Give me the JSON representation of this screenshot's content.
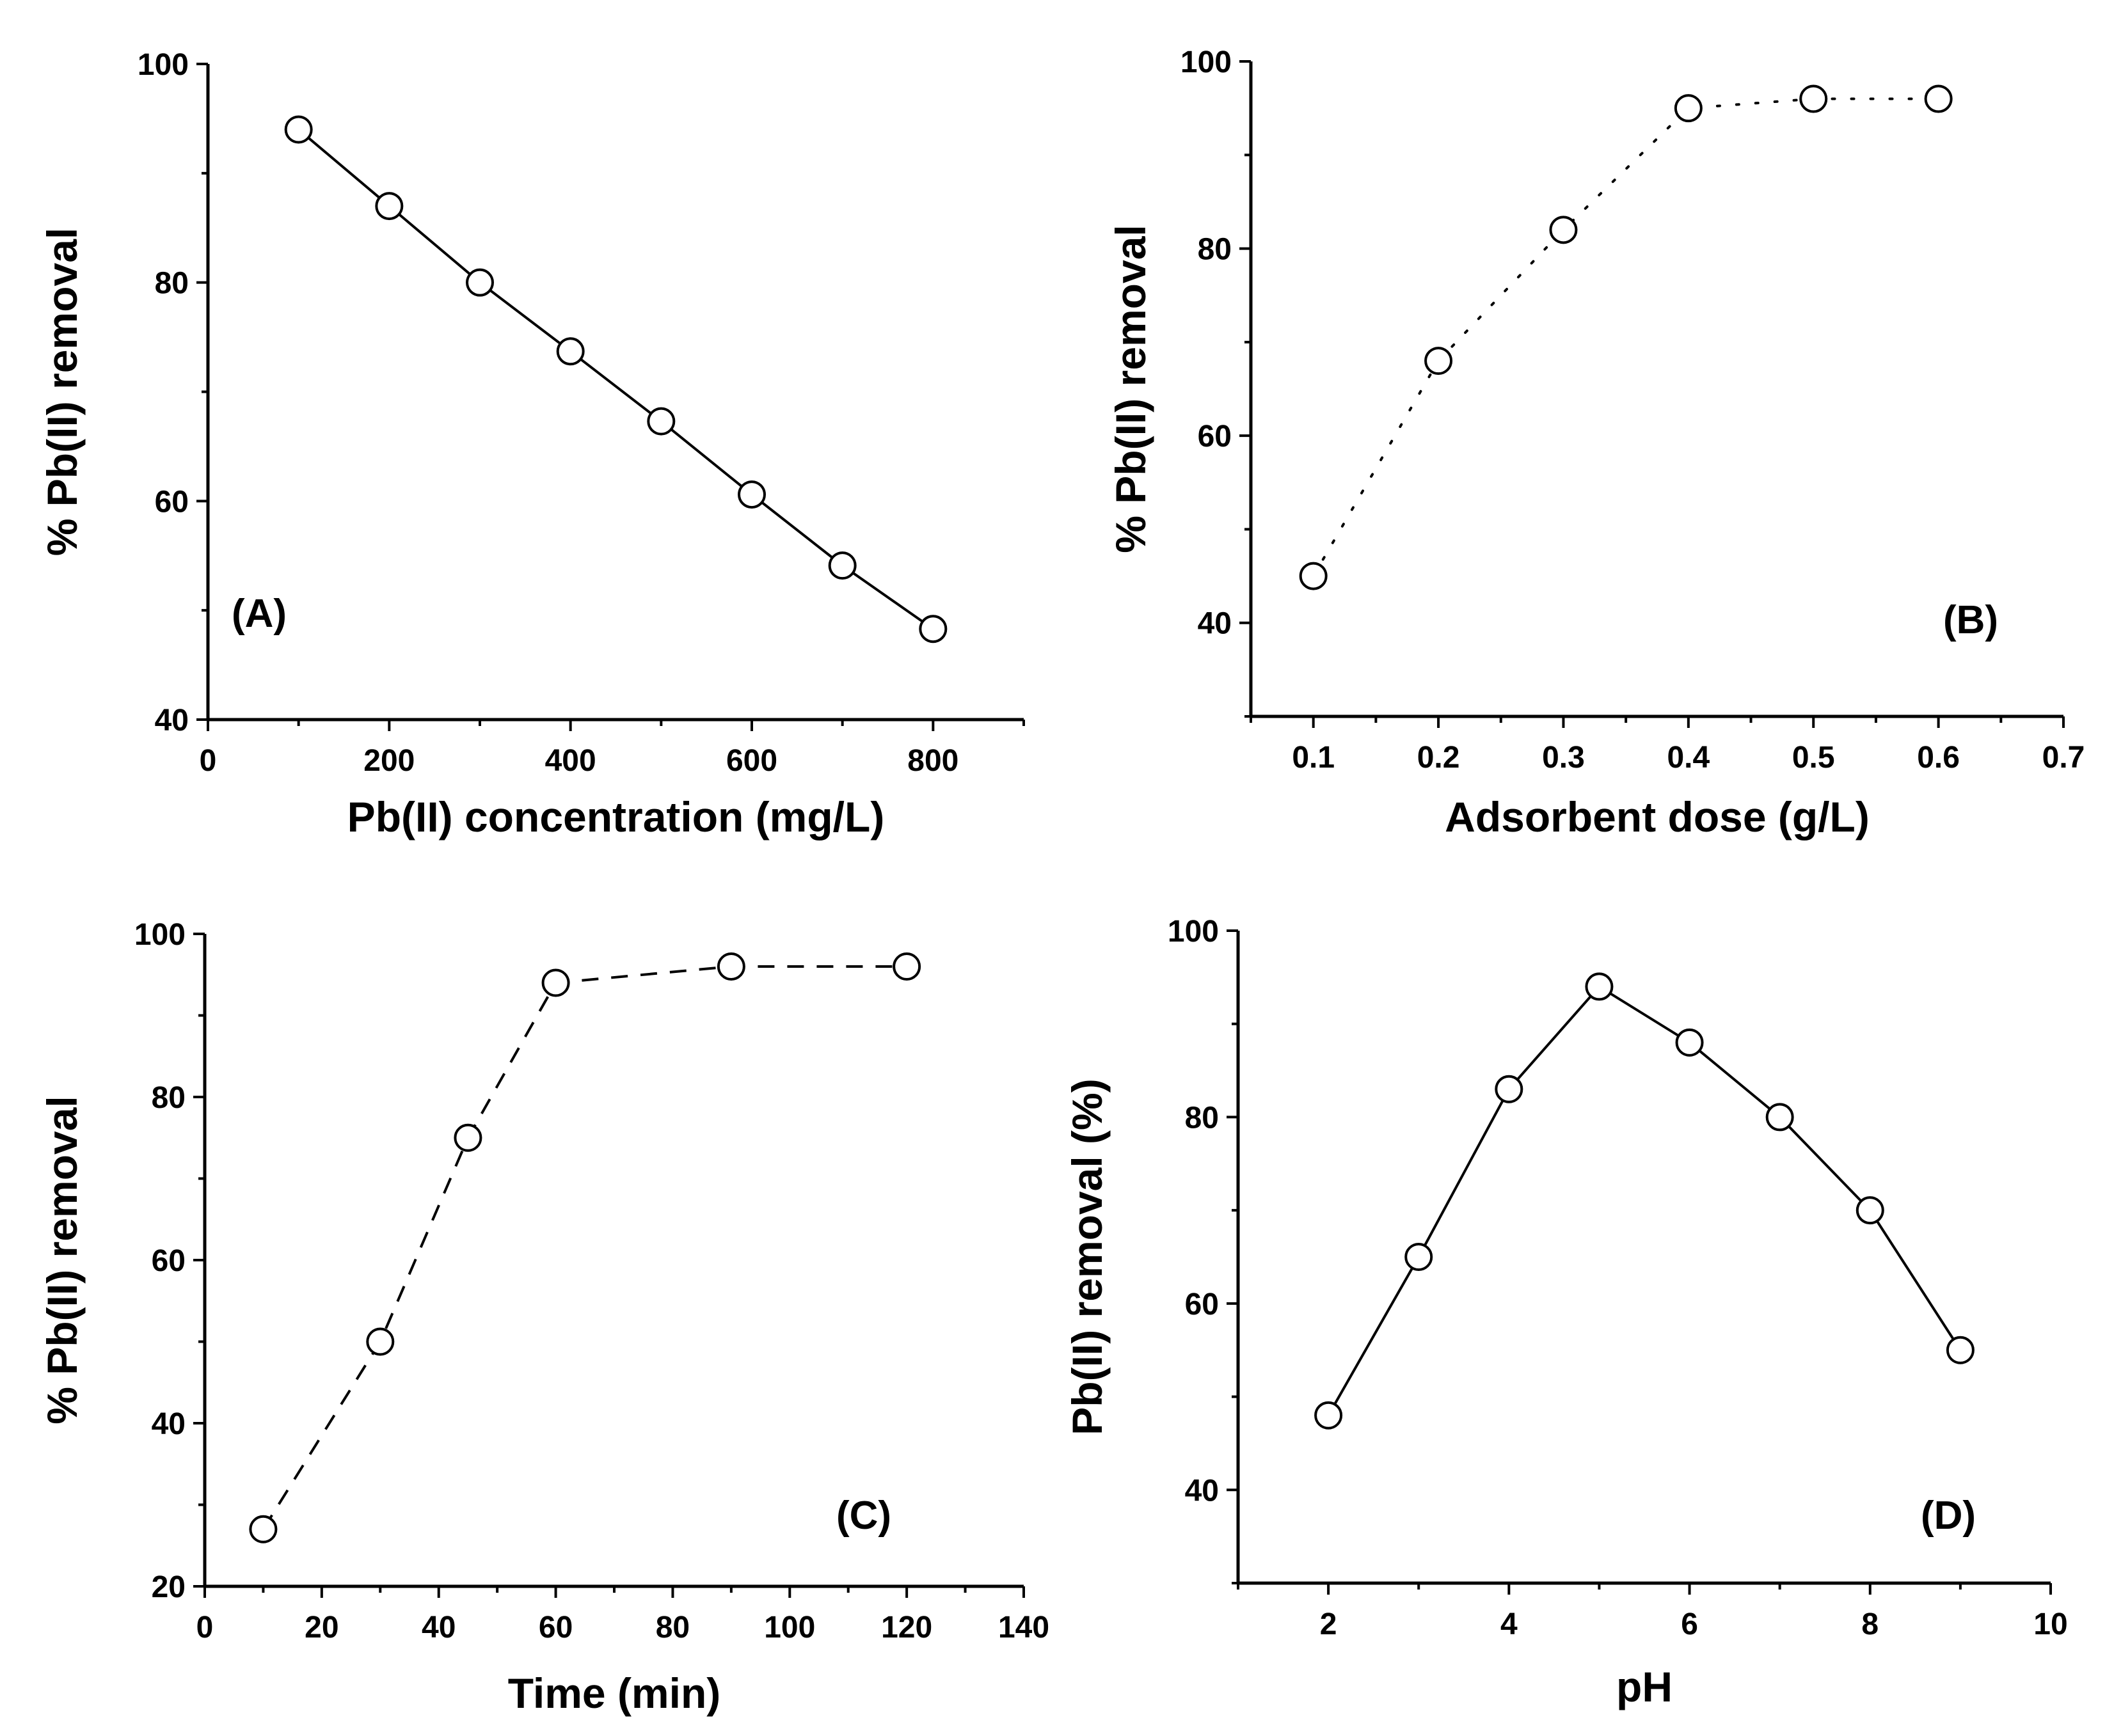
{
  "chart_data": [
    {
      "type": "line",
      "panel": "(A)",
      "xlabel": "Pb(II) concentration (mg/L)",
      "ylabel": "% Pb(II) removal",
      "xlim": [
        0,
        900
      ],
      "ylim": [
        40,
        100
      ],
      "xticks": [
        0,
        200,
        400,
        600,
        800
      ],
      "yticks": [
        40,
        60,
        80,
        100
      ],
      "line_style": "solid",
      "grid": false,
      "series": [
        {
          "name": "Pb(II) removal",
          "x": [
            100,
            200,
            300,
            400,
            500,
            600,
            700,
            800
          ],
          "values": [
            94,
            87,
            80,
            73.7,
            67.3,
            60.6,
            54.1,
            48.3
          ]
        }
      ]
    },
    {
      "type": "line",
      "panel": "(B)",
      "xlabel": "Adsorbent dose (g/L)",
      "ylabel": "% Pb(II) removal",
      "xlim": [
        0.05,
        0.7
      ],
      "ylim": [
        30,
        100
      ],
      "xticks": [
        0.1,
        0.2,
        0.3,
        0.4,
        0.5,
        0.6,
        0.7
      ],
      "yticks": [
        40,
        60,
        80,
        100
      ],
      "line_style": "dotted",
      "grid": false,
      "series": [
        {
          "name": "Pb(II) removal",
          "x": [
            0.1,
            0.2,
            0.3,
            0.4,
            0.5,
            0.6
          ],
          "values": [
            45,
            68,
            82,
            95,
            96,
            96
          ]
        }
      ]
    },
    {
      "type": "line",
      "panel": "(C)",
      "xlabel": "Time (min)",
      "ylabel": "% Pb(II) removal",
      "xlim": [
        0,
        140
      ],
      "ylim": [
        20,
        100
      ],
      "xticks": [
        0,
        20,
        40,
        60,
        80,
        100,
        120,
        140
      ],
      "yticks": [
        20,
        40,
        60,
        80,
        100
      ],
      "line_style": "dashed",
      "grid": false,
      "series": [
        {
          "name": "Pb(II) removal",
          "x": [
            10,
            30,
            45,
            60,
            90,
            120
          ],
          "values": [
            27,
            50,
            75,
            94,
            96,
            96
          ]
        }
      ]
    },
    {
      "type": "line",
      "panel": "(D)",
      "xlabel": "pH",
      "ylabel": "Pb(II) removal (%)",
      "xlim": [
        1,
        10
      ],
      "ylim": [
        30,
        100
      ],
      "xticks": [
        2,
        4,
        6,
        8,
        10
      ],
      "yticks": [
        40,
        60,
        80,
        100
      ],
      "line_style": "solid",
      "grid": false,
      "series": [
        {
          "name": "Pb(II) removal",
          "x": [
            2,
            3,
            4,
            5,
            6,
            7,
            8,
            9
          ],
          "values": [
            48,
            65,
            83,
            94,
            88,
            80,
            70,
            55
          ]
        }
      ]
    }
  ]
}
